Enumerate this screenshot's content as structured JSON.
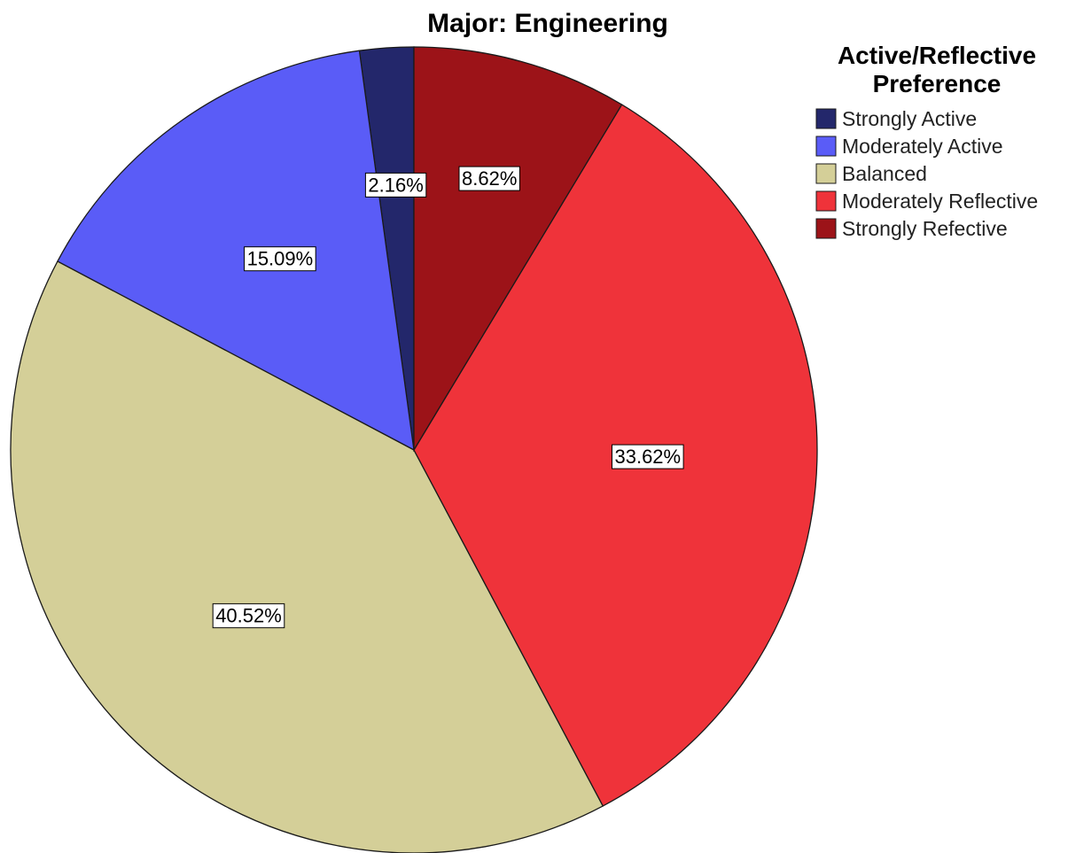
{
  "chart_data": {
    "type": "pie",
    "title": "Major: Engineering",
    "legend": {
      "title_lines": [
        "Active/Reflective",
        "Preference"
      ],
      "placement": "top-right"
    },
    "categories": [
      "Strongly Active",
      "Moderately Active",
      "Balanced",
      "Moderately Reflective",
      "Strongly Refective"
    ],
    "values": [
      2.16,
      15.09,
      40.52,
      33.62,
      8.62
    ],
    "labels": [
      "2.16%",
      "15.09%",
      "40.52%",
      "33.62%",
      "8.62%"
    ],
    "colors": [
      "#23276b",
      "#5a5cf7",
      "#d4cf98",
      "#ef333a",
      "#9c1318"
    ],
    "direction": "counterclockwise",
    "start": "top"
  }
}
